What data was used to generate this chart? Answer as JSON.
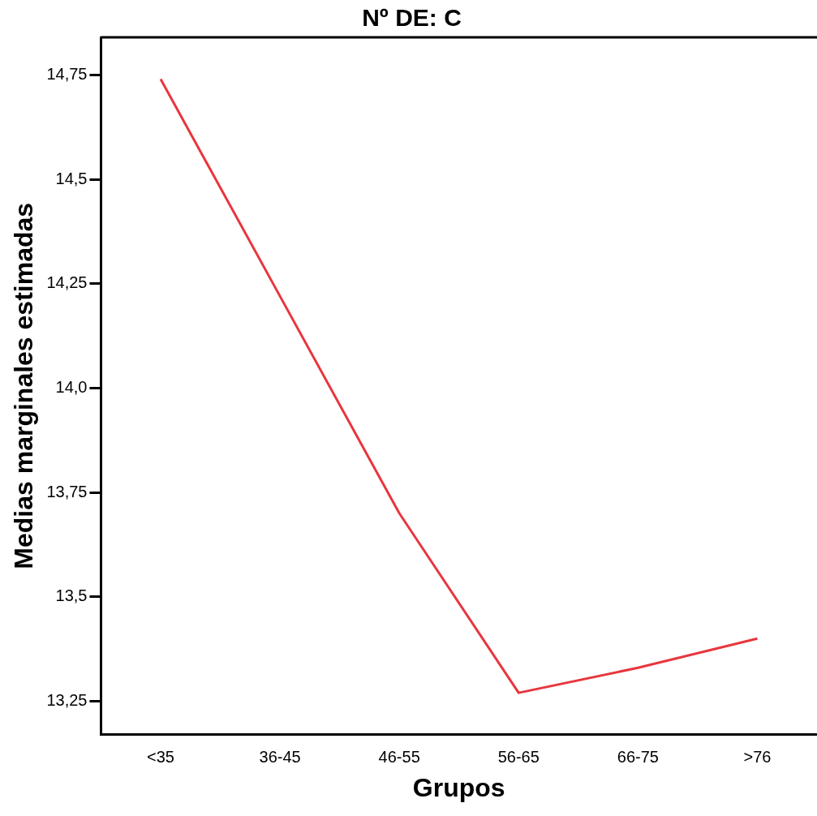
{
  "chart_data": {
    "type": "line",
    "title": "Nº DE: C",
    "xlabel": "Grupos",
    "ylabel": "Medias marginales estimadas",
    "categories": [
      "<35",
      "36-45",
      "46-55",
      "56-65",
      "66-75",
      ">76"
    ],
    "series": [
      {
        "color": "#e8363d",
        "values": [
          14.74,
          14.22,
          13.7,
          13.27,
          13.33,
          13.4
        ]
      }
    ],
    "ylim": [
      13.17,
      14.84
    ],
    "yticks": [
      {
        "value": 13.25,
        "label": "13,25"
      },
      {
        "value": 13.5,
        "label": "13,5"
      },
      {
        "value": 13.75,
        "label": "13,75"
      },
      {
        "value": 14.0,
        "label": "14,0"
      },
      {
        "value": 14.25,
        "label": "14,25"
      },
      {
        "value": 14.5,
        "label": "14,5"
      },
      {
        "value": 14.75,
        "label": "14,75"
      }
    ],
    "grid": false,
    "legend": false,
    "marker": "none",
    "line_style": "solid"
  }
}
